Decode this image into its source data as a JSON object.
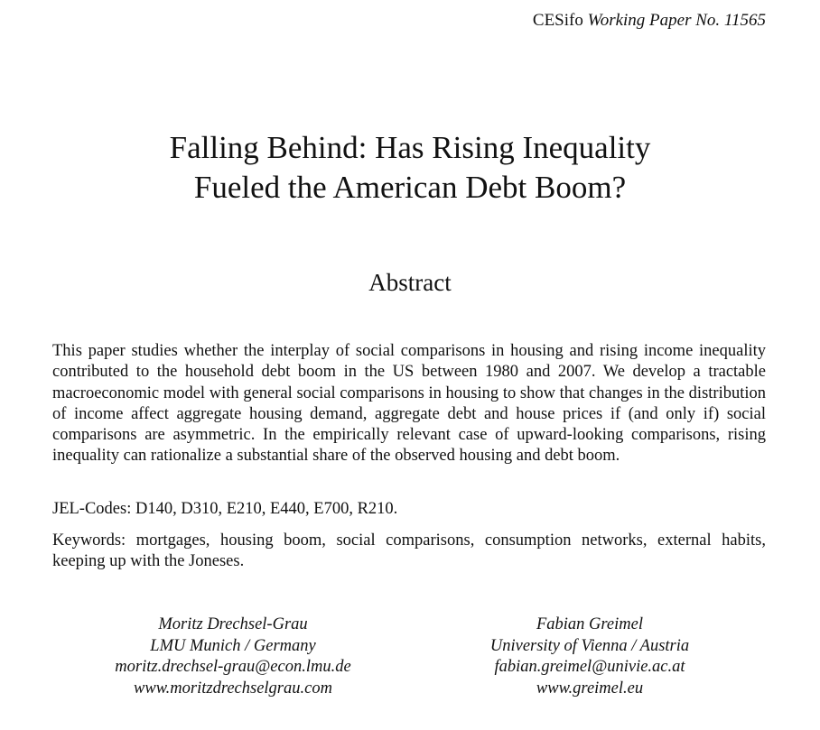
{
  "header": {
    "series_name": "CESifo",
    "series_detail": "Working Paper No. 11565"
  },
  "title": {
    "line1": "Falling Behind: Has Rising Inequality",
    "line2": "Fueled the American Debt Boom?"
  },
  "abstract": {
    "heading": "Abstract",
    "text": "This paper studies whether the interplay of social comparisons in housing and rising income inequality contributed to the household debt boom in the US between 1980 and 2007. We develop a tractable macroeconomic model with general social comparisons in housing to show that changes in the distribution of income affect aggregate housing demand, aggregate debt and house prices if (and only if) social comparisons are asymmetric. In the empirically relevant case of upward-looking comparisons, rising inequality can rationalize a substantial share of the observed housing and debt boom.",
    "jel": "JEL-Codes: D140, D310, E210, E440, E700, R210.",
    "keywords": "Keywords: mortgages, housing boom, social comparisons, consumption networks, external habits, keeping up with the Joneses."
  },
  "authors": [
    {
      "name": "Moritz Drechsel-Grau",
      "affiliation": "LMU Munich / Germany",
      "email": "moritz.drechsel-grau@econ.lmu.de",
      "web": "www.moritzdrechselgrau.com"
    },
    {
      "name": "Fabian Greimel",
      "affiliation": "University of Vienna / Austria",
      "email": "fabian.greimel@univie.ac.at",
      "web": "www.greimel.eu"
    }
  ]
}
